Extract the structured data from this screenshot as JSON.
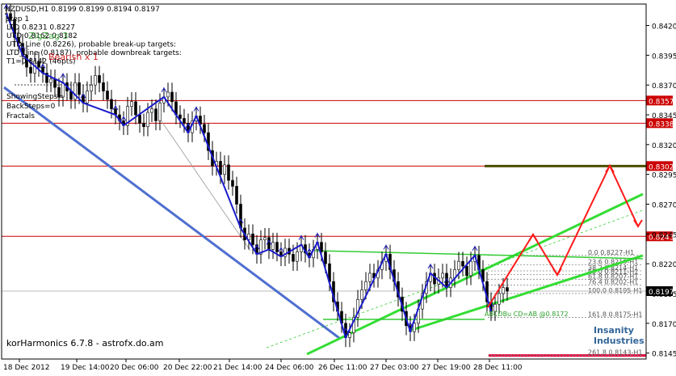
{
  "chart_data": {
    "type": "line",
    "symbol": "NZDUSD,H1",
    "ohlc_header": "NZDUSD,H1  0.8199 0.8199 0.8194 0.8197",
    "info_lines": [
      "step 1",
      "LTD 0.8231  0.8227",
      "UTD 0.8162  0.8182",
      "UTD_Line (0.8226), probable break-up targets:",
      "LTD_Line (0.8187), probable downbreak targets:",
      "T1=0.8142 (46pts)"
    ],
    "overlay_texts": [
      {
        "text": "ZigZag 3",
        "color": "#2ca02c"
      },
      {
        "text": "Bearish x 1",
        "color": "#cc0000"
      }
    ],
    "status_lines": [
      "ShowingSteps=",
      "BackSteps=0",
      "Fractals"
    ],
    "watermark": "korHarmonics 6.7.8 - astrofx.do.am",
    "logo_text": [
      "Insanity",
      "Industries"
    ],
    "pattern_label": "ABCDBu CD=AB  @0.8172",
    "ylim": [
      0.814,
      0.8438
    ],
    "y_ticks": [
      0.842,
      0.8395,
      0.837,
      0.8345,
      0.832,
      0.8295,
      0.827,
      0.8245,
      0.822,
      0.8195,
      0.817,
      0.8145
    ],
    "x_ticks": [
      "18 Dec 2012",
      "19 Dec 14:00",
      "20 Dec 06:00",
      "20 Dec 22:00",
      "21 Dec 14:00",
      "24 Dec 06:00",
      "26 Dec 11:00",
      "27 Dec 03:00",
      "27 Dec 19:00",
      "28 Dec 11:00"
    ],
    "current_price": "0.8197",
    "price_levels": [
      {
        "label": "0.8357",
        "value": 0.8357,
        "style": "red-line"
      },
      {
        "label": "0.8338",
        "value": 0.8338,
        "style": "red-line"
      },
      {
        "label": "0.8302",
        "value": 0.8302,
        "style": "red-line"
      },
      {
        "label": "0.8243",
        "value": 0.8243,
        "style": "red-line"
      }
    ],
    "fib_levels": [
      {
        "label": "0.0  0.8227-H1",
        "value": 0.8227
      },
      {
        "label": "23.6 0.8219-H1",
        "value": 0.8219
      },
      {
        "label": "38.2 0.8214-H1",
        "value": 0.8214
      },
      {
        "label": "50.0 0.8211-H1",
        "value": 0.8211
      },
      {
        "label": "61.8 0.8207-H1",
        "value": 0.8207
      },
      {
        "label": "76.4 0.8202-H1",
        "value": 0.8202
      },
      {
        "label": "100.0 0.8195-H1",
        "value": 0.8195
      },
      {
        "label": "161.8 0.8175-H1",
        "value": 0.8175
      },
      {
        "label": "261.8 0.8143-H1",
        "value": 0.8143
      }
    ],
    "series": [
      {
        "name": "Price",
        "type": "bar",
        "color": "#000000",
        "points": [
          [
            0,
            0.843
          ],
          [
            3,
            0.8425
          ],
          [
            6,
            0.841
          ],
          [
            9,
            0.8405
          ],
          [
            12,
            0.8395
          ],
          [
            15,
            0.8385
          ],
          [
            18,
            0.838
          ],
          [
            21,
            0.839
          ],
          [
            24,
            0.8385
          ],
          [
            27,
            0.838
          ],
          [
            30,
            0.8372
          ],
          [
            33,
            0.8375
          ],
          [
            36,
            0.8368
          ],
          [
            39,
            0.836
          ],
          [
            42,
            0.8372
          ],
          [
            45,
            0.8365
          ],
          [
            48,
            0.8358
          ],
          [
            51,
            0.8372
          ],
          [
            54,
            0.8362
          ],
          [
            57,
            0.8355
          ],
          [
            60,
            0.8365
          ],
          [
            63,
            0.837
          ],
          [
            66,
            0.8378
          ],
          [
            69,
            0.8372
          ],
          [
            72,
            0.8365
          ],
          [
            75,
            0.8358
          ],
          [
            78,
            0.835
          ],
          [
            81,
            0.8345
          ],
          [
            84,
            0.834
          ],
          [
            87,
            0.8336
          ],
          [
            90,
            0.8352
          ],
          [
            93,
            0.8356
          ],
          [
            96,
            0.8345
          ],
          [
            99,
            0.8338
          ],
          [
            102,
            0.8335
          ],
          [
            105,
            0.8347
          ],
          [
            108,
            0.835
          ],
          [
            111,
            0.834
          ],
          [
            114,
            0.8355
          ],
          [
            117,
            0.836
          ],
          [
            120,
            0.8364
          ],
          [
            123,
            0.8356
          ],
          [
            126,
            0.8345
          ],
          [
            129,
            0.8342
          ],
          [
            132,
            0.8338
          ],
          [
            135,
            0.833
          ],
          [
            138,
            0.834
          ],
          [
            141,
            0.8344
          ],
          [
            144,
            0.8337
          ],
          [
            147,
            0.833
          ],
          [
            150,
            0.8315
          ],
          [
            153,
            0.8302
          ],
          [
            156,
            0.8306
          ],
          [
            159,
            0.8295
          ],
          [
            162,
            0.8303
          ],
          [
            165,
            0.829
          ],
          [
            168,
            0.8285
          ],
          [
            171,
            0.827
          ],
          [
            174,
            0.825
          ],
          [
            177,
            0.824
          ],
          [
            180,
            0.8245
          ],
          [
            183,
            0.8236
          ],
          [
            186,
            0.8228
          ],
          [
            189,
            0.824
          ],
          [
            192,
            0.8242
          ],
          [
            195,
            0.8232
          ],
          [
            198,
            0.8238
          ],
          [
            201,
            0.823
          ],
          [
            204,
            0.8226
          ],
          [
            207,
            0.8233
          ],
          [
            210,
            0.8228
          ],
          [
            213,
            0.8222
          ],
          [
            216,
            0.823
          ],
          [
            219,
            0.8236
          ],
          [
            222,
            0.8229
          ],
          [
            225,
            0.8225
          ],
          [
            228,
            0.8232
          ],
          [
            231,
            0.8238
          ],
          [
            234,
            0.823
          ],
          [
            237,
            0.822
          ],
          [
            240,
            0.8205
          ],
          [
            243,
            0.8188
          ],
          [
            246,
            0.818
          ],
          [
            249,
            0.817
          ],
          [
            252,
            0.8158
          ],
          [
            255,
            0.8162
          ],
          [
            258,
            0.8175
          ],
          [
            261,
            0.819
          ],
          [
            264,
            0.8198
          ],
          [
            267,
            0.8205
          ],
          [
            270,
            0.8212
          ],
          [
            273,
            0.8208
          ],
          [
            276,
            0.8215
          ],
          [
            279,
            0.8222
          ],
          [
            282,
            0.8228
          ],
          [
            285,
            0.8215
          ],
          [
            288,
            0.8205
          ],
          [
            291,
            0.8192
          ],
          [
            294,
            0.818
          ],
          [
            297,
            0.8168
          ],
          [
            300,
            0.8163
          ],
          [
            303,
            0.817
          ],
          [
            306,
            0.8182
          ],
          [
            309,
            0.8195
          ],
          [
            312,
            0.8205
          ],
          [
            315,
            0.8212
          ],
          [
            318,
            0.8203
          ],
          [
            321,
            0.8208
          ],
          [
            324,
            0.8212
          ],
          [
            327,
            0.82
          ],
          [
            330,
            0.8208
          ],
          [
            333,
            0.8215
          ],
          [
            336,
            0.8222
          ],
          [
            339,
            0.8218
          ],
          [
            342,
            0.821
          ],
          [
            345,
            0.8222
          ],
          [
            348,
            0.8227
          ],
          [
            351,
            0.8215
          ],
          [
            354,
            0.8205
          ],
          [
            357,
            0.8188
          ],
          [
            360,
            0.818
          ],
          [
            363,
            0.8186
          ],
          [
            366,
            0.8195
          ],
          [
            369,
            0.82
          ],
          [
            372,
            0.8197
          ]
        ]
      },
      {
        "name": "ZigZag 3",
        "color": "#0000cc",
        "points": [
          [
            0,
            0.843
          ],
          [
            12,
            0.8395
          ],
          [
            27,
            0.838
          ],
          [
            42,
            0.8372
          ],
          [
            57,
            0.8355
          ],
          [
            81,
            0.8345
          ],
          [
            87,
            0.8336
          ],
          [
            117,
            0.836
          ],
          [
            135,
            0.833
          ],
          [
            141,
            0.8344
          ],
          [
            174,
            0.825
          ],
          [
            186,
            0.8228
          ],
          [
            195,
            0.8232
          ],
          [
            204,
            0.8226
          ],
          [
            219,
            0.8236
          ],
          [
            225,
            0.8225
          ],
          [
            231,
            0.8238
          ],
          [
            252,
            0.8158
          ],
          [
            282,
            0.8228
          ],
          [
            300,
            0.8163
          ],
          [
            315,
            0.8212
          ],
          [
            327,
            0.82
          ],
          [
            348,
            0.8227
          ],
          [
            360,
            0.818
          ]
        ]
      }
    ]
  }
}
